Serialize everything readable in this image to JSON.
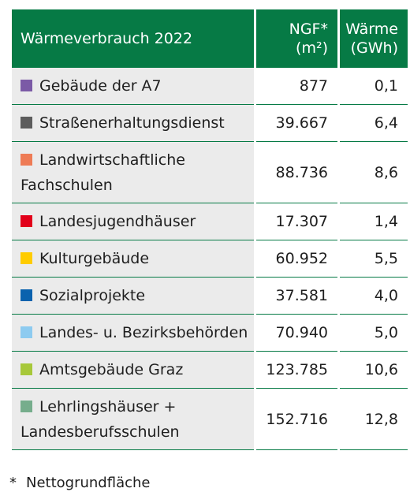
{
  "table": {
    "title": "Wärmeverbrauch 2022",
    "col_ngf": {
      "line1": "NGF*",
      "line2": "(m²)"
    },
    "col_waerme": {
      "line1": "Wärme",
      "line2": "(GWh)"
    },
    "rows": [
      {
        "color": "#7b5aa6",
        "line1": "Gebäude der A7",
        "line2": "",
        "ngf": "877",
        "waerme": "0,1"
      },
      {
        "color": "#5c5c5c",
        "line1": "Straßenerhaltungsdienst",
        "line2": "",
        "ngf": "39.667",
        "waerme": "6,4"
      },
      {
        "color": "#ee7b55",
        "line1": "Landwirtschaftliche",
        "line2": "Fachschulen",
        "ngf": "88.736",
        "waerme": "8,6"
      },
      {
        "color": "#e2001a",
        "line1": "Landesjugendhäuser",
        "line2": "",
        "ngf": "17.307",
        "waerme": "1,4"
      },
      {
        "color": "#ffcc00",
        "line1": "Kulturgebäude",
        "line2": "",
        "ngf": "60.952",
        "waerme": "5,5"
      },
      {
        "color": "#0a62ae",
        "line1": "Sozialprojekte",
        "line2": "",
        "ngf": "37.581",
        "waerme": "4,0"
      },
      {
        "color": "#8dcbf0",
        "line1": "Landes- u. Bezirksbehörden",
        "line2": "",
        "ngf": "70.940",
        "waerme": "5,0"
      },
      {
        "color": "#a7c83a",
        "line1": "Amtsgebäude Graz",
        "line2": "",
        "ngf": "123.785",
        "waerme": "10,6"
      },
      {
        "color": "#76ad8c",
        "line1": "Lehrlingshäuser +",
        "line2": "Landesberufsschulen",
        "ngf": "152.716",
        "waerme": "12,8"
      }
    ]
  },
  "footnote": {
    "mark": "*",
    "text": "Nettogrundfläche"
  }
}
